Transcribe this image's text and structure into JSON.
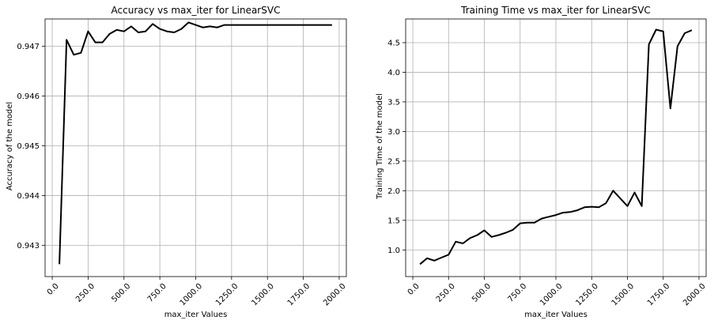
{
  "chart_data": [
    {
      "type": "line",
      "title": "Accuracy vs max_iter for LinearSVC",
      "xlabel": "max_iter Values",
      "ylabel": "Accuracy of the model",
      "xlim": [
        -50,
        2050
      ],
      "ylim": [
        0.94237,
        0.94755
      ],
      "xticks": [
        0,
        250,
        500,
        750,
        1000,
        1250,
        1500,
        1750,
        2000
      ],
      "xtick_labels": [
        "0.0",
        "250.0",
        "500.0",
        "750.0",
        "1000.0",
        "1250.0",
        "1500.0",
        "1750.0",
        "2000.0"
      ],
      "yticks": [
        0.943,
        0.944,
        0.945,
        0.946,
        0.947
      ],
      "ytick_labels": [
        "0.943",
        "0.944",
        "0.945",
        "0.946",
        "0.947"
      ],
      "grid": true,
      "color": "#000000",
      "x": [
        50,
        100,
        150,
        200,
        250,
        300,
        350,
        400,
        450,
        500,
        550,
        600,
        650,
        700,
        750,
        800,
        850,
        900,
        950,
        1000,
        1050,
        1100,
        1150,
        1200,
        1250,
        1300,
        1350,
        1400,
        1450,
        1500,
        1550,
        1600,
        1650,
        1700,
        1750,
        1800,
        1850,
        1900,
        1950
      ],
      "y": [
        0.94262,
        0.94713,
        0.94683,
        0.94687,
        0.9473,
        0.94708,
        0.94708,
        0.94725,
        0.94733,
        0.9473,
        0.9474,
        0.94728,
        0.9473,
        0.94745,
        0.94735,
        0.9473,
        0.94728,
        0.94735,
        0.94748,
        0.94743,
        0.94738,
        0.9474,
        0.94738,
        0.94743,
        0.94743,
        0.94743,
        0.94743,
        0.94743,
        0.94743,
        0.94743,
        0.94743,
        0.94743,
        0.94743,
        0.94743,
        0.94743,
        0.94743,
        0.94743,
        0.94743,
        0.94743
      ]
    },
    {
      "type": "line",
      "title": "Training Time vs max_iter for LinearSVC",
      "xlabel": "max_iter Values",
      "ylabel": "Training Time of the model",
      "xlim": [
        -50,
        2050
      ],
      "ylim": [
        0.55,
        4.9
      ],
      "xticks": [
        0,
        250,
        500,
        750,
        1000,
        1250,
        1500,
        1750,
        2000
      ],
      "xtick_labels": [
        "0.0",
        "250.0",
        "500.0",
        "750.0",
        "1000.0",
        "1250.0",
        "1500.0",
        "1750.0",
        "2000.0"
      ],
      "yticks": [
        1.0,
        1.5,
        2.0,
        2.5,
        3.0,
        3.5,
        4.0,
        4.5
      ],
      "ytick_labels": [
        "1.0",
        "1.5",
        "2.0",
        "2.5",
        "3.0",
        "3.5",
        "4.0",
        "4.5"
      ],
      "grid": true,
      "color": "#000000",
      "x": [
        50,
        100,
        150,
        200,
        250,
        300,
        350,
        400,
        450,
        500,
        550,
        600,
        650,
        700,
        750,
        800,
        850,
        900,
        950,
        1000,
        1050,
        1100,
        1150,
        1200,
        1250,
        1300,
        1350,
        1400,
        1450,
        1500,
        1550,
        1600,
        1650,
        1700,
        1750,
        1800,
        1850,
        1900,
        1950
      ],
      "y": [
        0.76,
        0.86,
        0.82,
        0.87,
        0.92,
        1.14,
        1.11,
        1.2,
        1.25,
        1.33,
        1.22,
        1.25,
        1.29,
        1.34,
        1.45,
        1.46,
        1.46,
        1.53,
        1.56,
        1.59,
        1.63,
        1.64,
        1.67,
        1.72,
        1.73,
        1.72,
        1.79,
        2.0,
        1.87,
        1.74,
        1.97,
        1.74,
        4.47,
        4.72,
        4.69,
        3.39,
        4.44,
        4.66,
        4.71
      ]
    }
  ]
}
